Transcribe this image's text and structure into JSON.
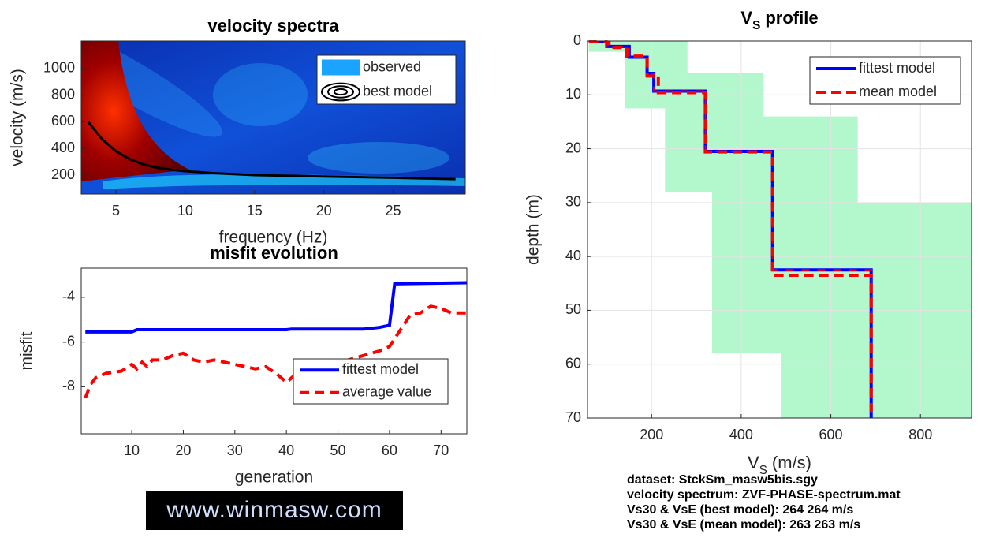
{
  "chart_data": [
    {
      "type": "heatmap-contour",
      "title": "velocity spectra",
      "xlabel": "frequency (Hz)",
      "ylabel": "velocity (m/s)",
      "xlim": [
        2.5,
        30.2
      ],
      "ylim": [
        58,
        1207
      ],
      "xticks": [
        5,
        10,
        15,
        20,
        25
      ],
      "yticks": [
        200,
        400,
        600,
        800,
        1000
      ],
      "legend": [
        "observed",
        "best model"
      ],
      "observed_color": "#1aa3ff",
      "series": [
        {
          "name": "best model",
          "color": "#000000",
          "x": [
            3,
            4,
            5,
            6,
            7,
            8,
            9,
            10,
            12,
            15,
            20,
            25,
            29.5
          ],
          "values": [
            600,
            470,
            380,
            320,
            280,
            255,
            240,
            230,
            215,
            200,
            190,
            180,
            170
          ]
        }
      ]
    },
    {
      "type": "line",
      "title": "misfit evolution",
      "xlabel": "generation",
      "ylabel": "misfit",
      "xlim": [
        0.2,
        75
      ],
      "ylim": [
        -10.1,
        -2.7
      ],
      "xticks": [
        10,
        20,
        30,
        40,
        50,
        60,
        70
      ],
      "yticks": [
        -8,
        -6,
        -4
      ],
      "series": [
        {
          "name": "fittest model",
          "color": "#0000ff",
          "dashed": false,
          "x": [
            1,
            10,
            11,
            40,
            41,
            55,
            58,
            59,
            60,
            61,
            75
          ],
          "values": [
            -5.55,
            -5.55,
            -5.45,
            -5.45,
            -5.42,
            -5.42,
            -5.35,
            -5.3,
            -5.25,
            -3.4,
            -3.35
          ]
        },
        {
          "name": "average value",
          "color": "#ff0000",
          "dashed": true,
          "x": [
            1,
            2,
            3,
            5,
            8,
            10,
            11,
            12,
            13,
            14,
            16,
            18,
            20,
            22,
            24,
            26,
            28,
            30,
            32,
            34,
            36,
            38,
            40,
            42,
            44,
            46,
            48,
            50,
            52,
            55,
            58,
            60,
            62,
            64,
            66,
            68,
            70,
            72,
            75
          ],
          "values": [
            -8.5,
            -7.9,
            -7.6,
            -7.4,
            -7.3,
            -7.0,
            -7.2,
            -6.9,
            -7.1,
            -6.8,
            -6.8,
            -6.6,
            -6.5,
            -6.8,
            -6.9,
            -6.8,
            -6.9,
            -7.0,
            -7.1,
            -7.2,
            -7.1,
            -7.4,
            -7.8,
            -7.4,
            -7.3,
            -7.2,
            -7.0,
            -6.9,
            -6.8,
            -6.6,
            -6.4,
            -6.2,
            -5.5,
            -4.8,
            -4.7,
            -4.4,
            -4.5,
            -4.7,
            -4.7
          ]
        }
      ]
    },
    {
      "type": "step-profile",
      "title_main": "V",
      "title_sub": "S",
      "title_rest": "profile",
      "xlabel_main": "V",
      "xlabel_sub": "S",
      "xlabel_rest": "(m/s)",
      "ylabel": "depth (m)",
      "xlim": [
        57,
        914
      ],
      "ylim": [
        0,
        70
      ],
      "y_reversed": true,
      "grid": true,
      "xticks": [
        200,
        400,
        600,
        800
      ],
      "yticks": [
        0,
        10,
        20,
        30,
        40,
        50,
        60,
        70
      ],
      "band": {
        "color": "#b3f7cc",
        "x": [
          60,
          280,
          280,
          450,
          450,
          660,
          660,
          920,
          920,
          490,
          490,
          335,
          335,
          230,
          230,
          140,
          140,
          60
        ],
        "y": [
          0,
          0,
          6,
          6,
          14,
          14,
          30,
          30,
          70,
          70,
          58,
          58,
          28,
          28,
          12.5,
          12.5,
          2,
          2
        ]
      },
      "series": [
        {
          "name": "fittest model",
          "color": "#0000ff",
          "dashed": false,
          "x": [
            60,
            100,
            100,
            150,
            150,
            190,
            190,
            205,
            205,
            320,
            320,
            470,
            470,
            690,
            690
          ],
          "values": [
            0,
            0,
            1,
            1,
            3,
            3,
            6,
            6,
            9.3,
            9.3,
            20.5,
            20.5,
            42.5,
            42.5,
            70
          ]
        },
        {
          "name": "mean model",
          "color": "#ff0000",
          "dashed": true,
          "x": [
            60,
            105,
            105,
            145,
            145,
            190,
            190,
            215,
            215,
            320,
            320,
            470,
            470,
            690,
            690
          ],
          "values": [
            0,
            0,
            1.2,
            1.2,
            2.8,
            2.8,
            6.5,
            6.5,
            9.6,
            9.6,
            20.6,
            20.6,
            43.5,
            43.5,
            70
          ]
        }
      ]
    }
  ],
  "footer": {
    "lines": [
      "dataset: StckSm_masw5bis.sgy",
      "velocity spectrum: ZVF-PHASE-spectrum.mat",
      "Vs30 & VsE (best model): 264  264 m/s",
      "Vs30 & VsE (mean model): 263  263 m/s"
    ]
  },
  "logo": "www.winmasw.com"
}
